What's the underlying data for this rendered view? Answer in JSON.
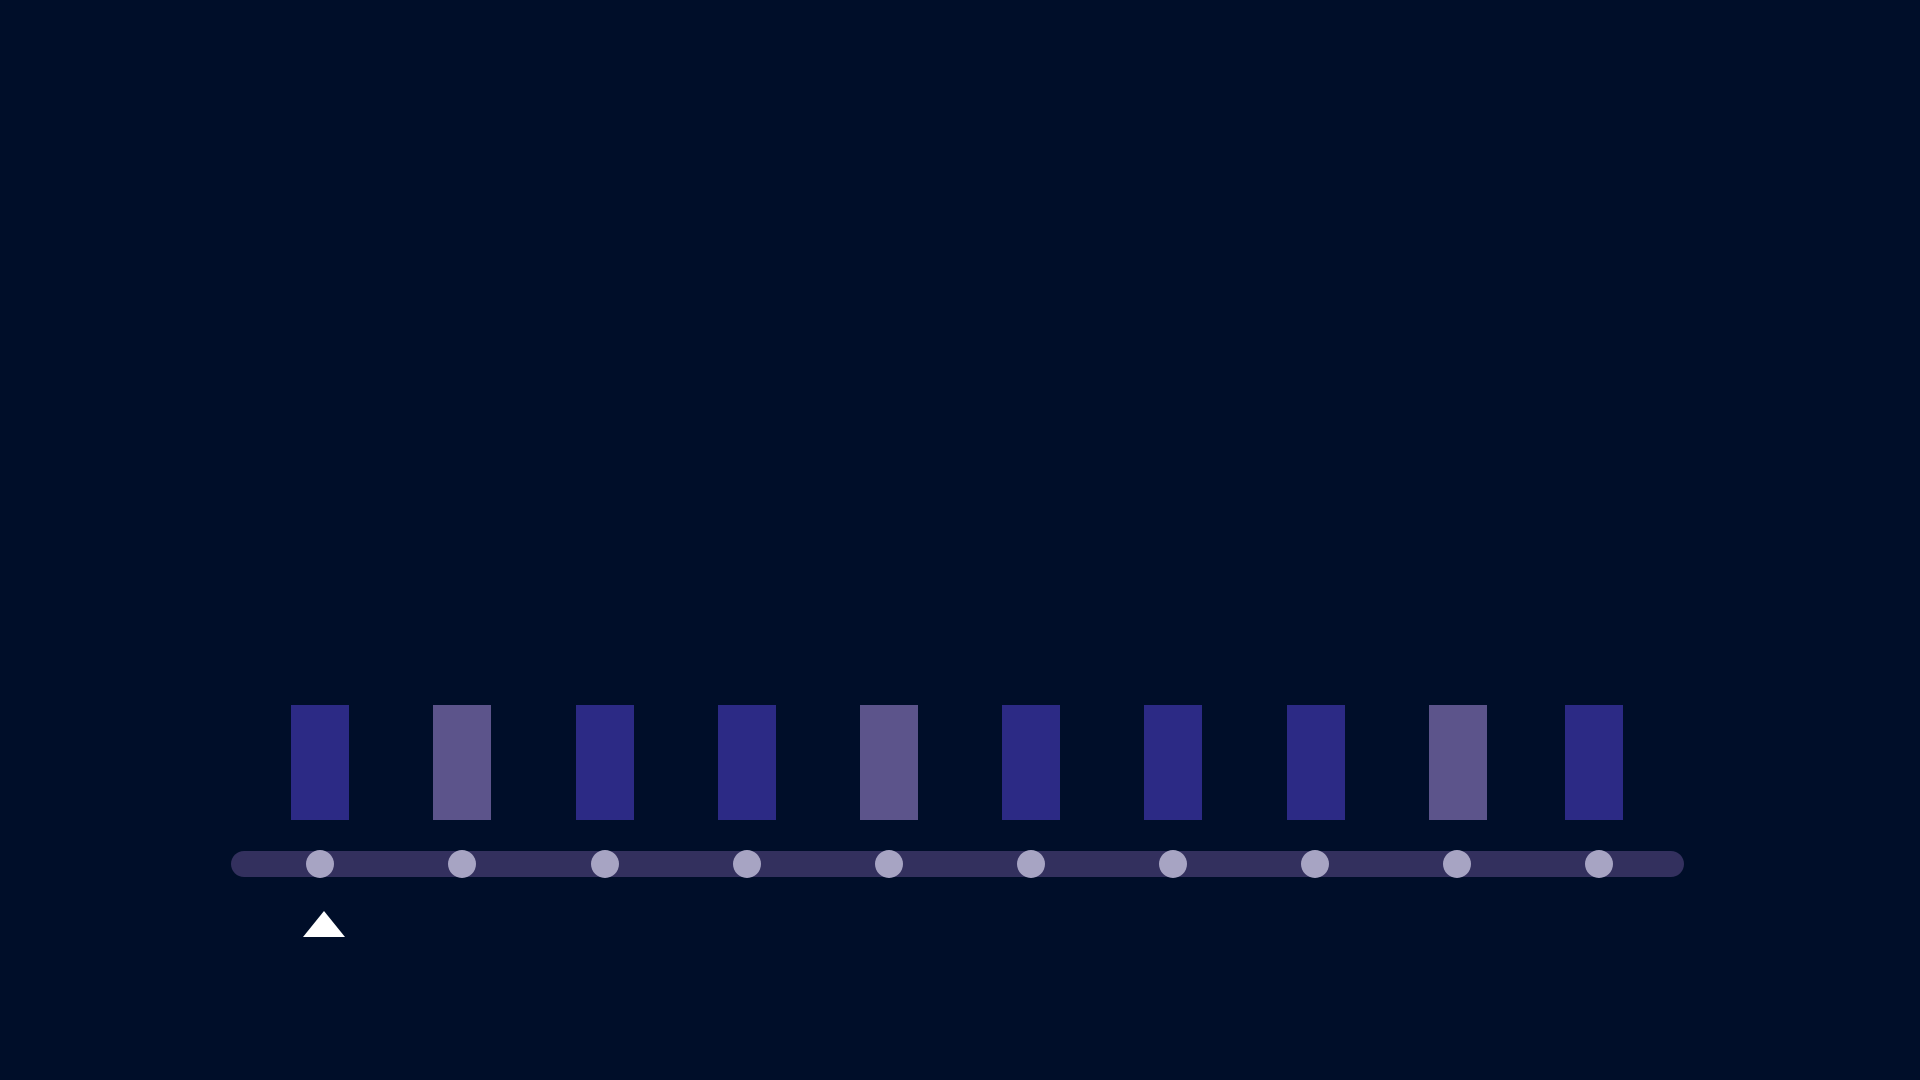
{
  "game": {
    "colors": {
      "background": "#000e29",
      "block_dark": "#2c2a85",
      "block_light": "#5c548b",
      "track": "#33305e",
      "dot": "#a7a4c3",
      "marker": "#ffffff"
    },
    "blocks": [
      {
        "shade": "dark"
      },
      {
        "shade": "light"
      },
      {
        "shade": "dark"
      },
      {
        "shade": "dark"
      },
      {
        "shade": "light"
      },
      {
        "shade": "dark"
      },
      {
        "shade": "dark"
      },
      {
        "shade": "dark"
      },
      {
        "shade": "light"
      },
      {
        "shade": "dark"
      }
    ],
    "slot_count": 10,
    "selected_slot": 1,
    "marker_icon": "triangle-up-icon"
  }
}
